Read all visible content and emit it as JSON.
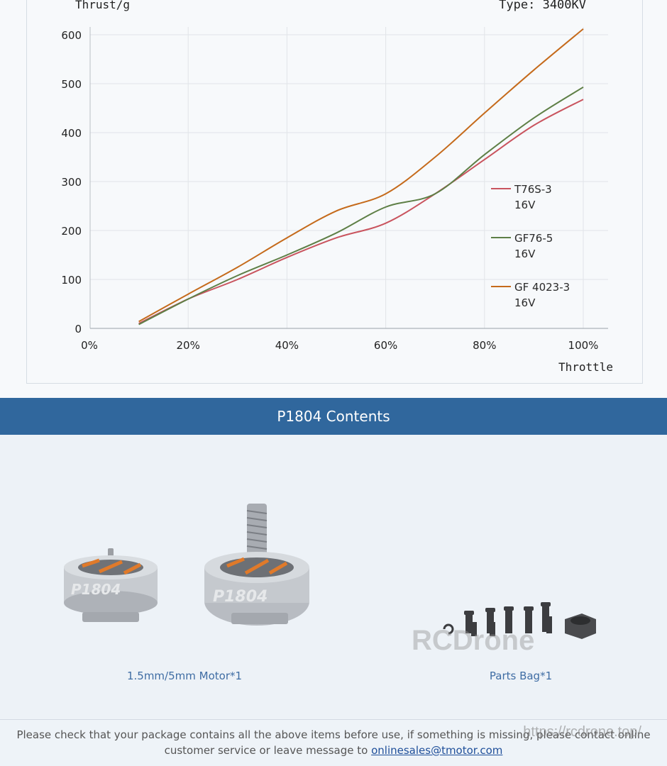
{
  "chart_data": {
    "type": "line",
    "ylabel": "Thrust/g",
    "type_label": "Type: 3400KV",
    "xlabel": "Throttle",
    "x": [
      10,
      20,
      30,
      40,
      50,
      60,
      70,
      80,
      90,
      100
    ],
    "xlim": [
      0,
      100
    ],
    "ylim": [
      0,
      620
    ],
    "x_ticks": [
      "0%",
      "20%",
      "40%",
      "60%",
      "80%",
      "100%"
    ],
    "x_tick_values": [
      0,
      20,
      40,
      60,
      80,
      100
    ],
    "y_ticks": [
      "0",
      "100",
      "200",
      "300",
      "400",
      "500",
      "600"
    ],
    "y_tick_values": [
      0,
      100,
      200,
      300,
      400,
      500,
      600
    ],
    "grid": true,
    "legend_position": "right",
    "series": [
      {
        "name": "T76S-3",
        "sub": "16V",
        "color": "#c9545e",
        "values": [
          10,
          60,
          100,
          145,
          185,
          215,
          275,
          345,
          415,
          468
        ]
      },
      {
        "name": "GF76-5",
        "sub": "16V",
        "color": "#5e7f46",
        "values": [
          8,
          60,
          108,
          150,
          195,
          248,
          275,
          355,
          430,
          493
        ]
      },
      {
        "name": "GF 4023-3",
        "sub": "16V",
        "color": "#c56a1b",
        "values": [
          14,
          70,
          125,
          185,
          240,
          275,
          350,
          440,
          528,
          612
        ]
      }
    ]
  },
  "banner": {
    "title": "P1804 Contents"
  },
  "items": [
    {
      "caption": "1.5mm/5mm Motor*1"
    },
    {
      "caption": "Parts Bag*1"
    }
  ],
  "watermark": "RCDrone",
  "footer": {
    "text": "Please check that your package contains all the above items before use, if something is missing, please contact online customer service or leave message to",
    "email": "onlinesales@tmotor.com",
    "url_mark": "https://rcdrone.top/"
  }
}
